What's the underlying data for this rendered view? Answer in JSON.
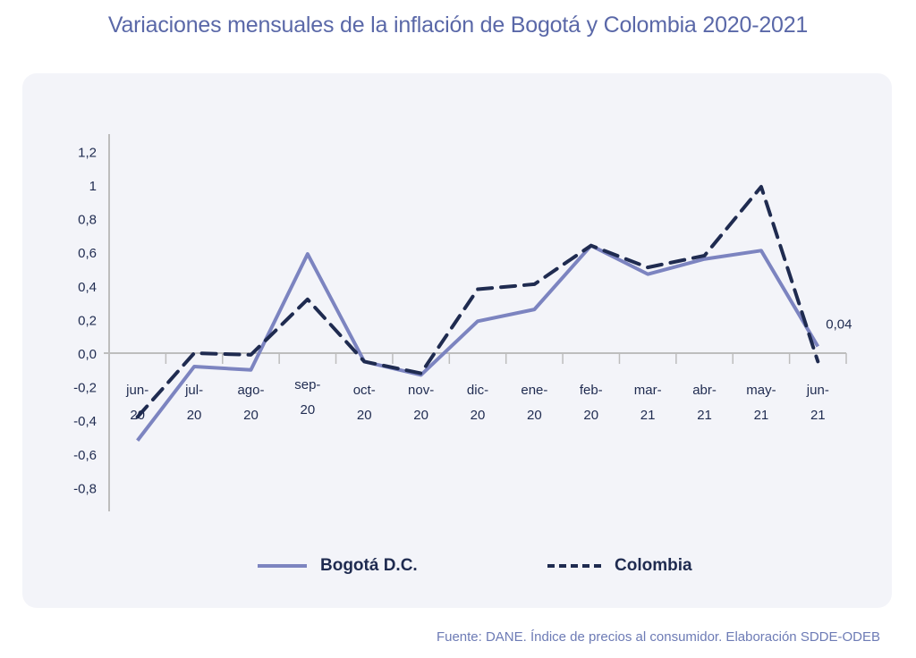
{
  "title": "Variaciones mensuales de la inflación de Bogotá y Colombia 2020-2021",
  "source": "Fuente: DANE. Índice de precios al consumidor. Elaboración SDDE-ODEB",
  "colors": {
    "bogota": "#7c84c0",
    "colombia": "#1f2b50",
    "axis": "#bdbdbd",
    "text": "#1f2b50"
  },
  "chart_data": {
    "type": "line",
    "title": "Variaciones mensuales de la inflación de Bogotá y Colombia 2020-2021",
    "xlabel": "",
    "ylabel": "",
    "categories": [
      {
        "line1": "jun-",
        "line2": "20"
      },
      {
        "line1": "jul-",
        "line2": "20"
      },
      {
        "line1": "ago-",
        "line2": "20"
      },
      {
        "line1": "sep-",
        "line2": "20"
      },
      {
        "line1": "oct-",
        "line2": "20"
      },
      {
        "line1": "nov-",
        "line2": "20"
      },
      {
        "line1": "dic-",
        "line2": "20"
      },
      {
        "line1": "ene-",
        "line2": "20"
      },
      {
        "line1": "feb-",
        "line2": "20"
      },
      {
        "line1": "mar-",
        "line2": "21"
      },
      {
        "line1": "abr-",
        "line2": "21"
      },
      {
        "line1": "may-",
        "line2": "21"
      },
      {
        "line1": "jun-",
        "line2": "21"
      }
    ],
    "ylim": [
      -0.9,
      1.3
    ],
    "yticks": [
      1.2,
      1,
      0.8,
      0.6,
      0.4,
      0.2,
      0,
      -0.2,
      -0.4,
      -0.6,
      -0.8
    ],
    "ytick_labels": [
      "1,2",
      "1",
      "0,8",
      "0,6",
      "0,4",
      "0,2",
      "0,0",
      "-0,2",
      "-0,4",
      "-0,6",
      "-0,8"
    ],
    "grid": false,
    "legend_position": "bottom",
    "series": [
      {
        "name": "Bogotá D.C.",
        "style": "solid",
        "values": [
          -0.52,
          -0.08,
          -0.1,
          0.59,
          -0.05,
          -0.13,
          0.19,
          0.26,
          0.64,
          0.47,
          0.56,
          0.61,
          0.04
        ]
      },
      {
        "name": "Colombia",
        "style": "dashed",
        "values": [
          -0.38,
          0.0,
          -0.01,
          0.32,
          -0.05,
          -0.12,
          0.38,
          0.41,
          0.64,
          0.51,
          0.58,
          0.99,
          -0.05
        ]
      }
    ],
    "annotations": [
      {
        "series": "Bogotá D.C.",
        "index": 12,
        "text": "0,04"
      }
    ]
  }
}
